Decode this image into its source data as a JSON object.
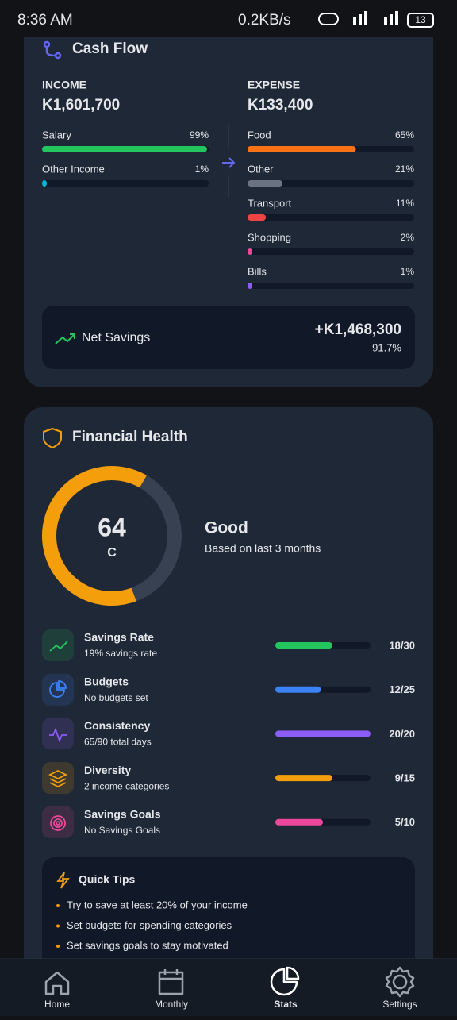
{
  "status": {
    "time": "8:36 AM",
    "speed": "0.2KB/s",
    "battery": "13"
  },
  "cash_flow": {
    "title": "Cash Flow",
    "income": {
      "label": "INCOME",
      "total": "K1,601,700",
      "color": "#22c55e",
      "items": [
        {
          "name": "Salary",
          "value": 99,
          "label": "99%",
          "color": "#22c55e"
        },
        {
          "name": "Other Income",
          "value": 1,
          "label": "1%",
          "color": "#06b6d4"
        }
      ]
    },
    "expense": {
      "label": "EXPENSE",
      "total": "K133,400",
      "color": "#ef4444",
      "items": [
        {
          "name": "Food",
          "value": 65,
          "label": "65%",
          "color": "#f97316"
        },
        {
          "name": "Other",
          "value": 21,
          "label": "21%",
          "color": "#6b7280"
        },
        {
          "name": "Transport",
          "value": 11,
          "label": "11%",
          "color": "#ef4444"
        },
        {
          "name": "Shopping",
          "value": 2,
          "label": "2%",
          "color": "#ec4899"
        },
        {
          "name": "Bills",
          "value": 1,
          "label": "1%",
          "color": "#8b5cf6"
        }
      ]
    },
    "net_savings": {
      "label": "Net Savings",
      "amount": "+K1,468,300",
      "percent": "91.7%"
    }
  },
  "health": {
    "title": "Financial Health",
    "score": {
      "value": 64,
      "grade": "C",
      "color": "#f59e0b"
    },
    "status": "Good",
    "note": "Based on last 3 months",
    "metrics": [
      {
        "name": "Savings Rate",
        "detail": "19% savings rate",
        "score": 18,
        "max": 30,
        "label": "18/30",
        "color": "#22c55e"
      },
      {
        "name": "Budgets",
        "detail": "No budgets set",
        "score": 12,
        "max": 25,
        "label": "12/25",
        "color": "#3b82f6"
      },
      {
        "name": "Consistency",
        "detail": "65/90 total days",
        "score": 20,
        "max": 20,
        "label": "20/20",
        "color": "#8b5cf6"
      },
      {
        "name": "Diversity",
        "detail": "2 income categories",
        "score": 9,
        "max": 15,
        "label": "9/15",
        "color": "#f59e0b"
      },
      {
        "name": "Savings Goals",
        "detail": "No Savings Goals",
        "score": 5,
        "max": 10,
        "label": "5/10",
        "color": "#ec4899"
      }
    ],
    "tips": {
      "title": "Quick Tips",
      "items": [
        "Try to save at least 20% of your income",
        "Set budgets for spending categories",
        "Set savings goals to stay motivated"
      ]
    }
  },
  "nav": {
    "items": [
      "Home",
      "Monthly",
      "Stats",
      "Settings"
    ],
    "active": 2
  }
}
